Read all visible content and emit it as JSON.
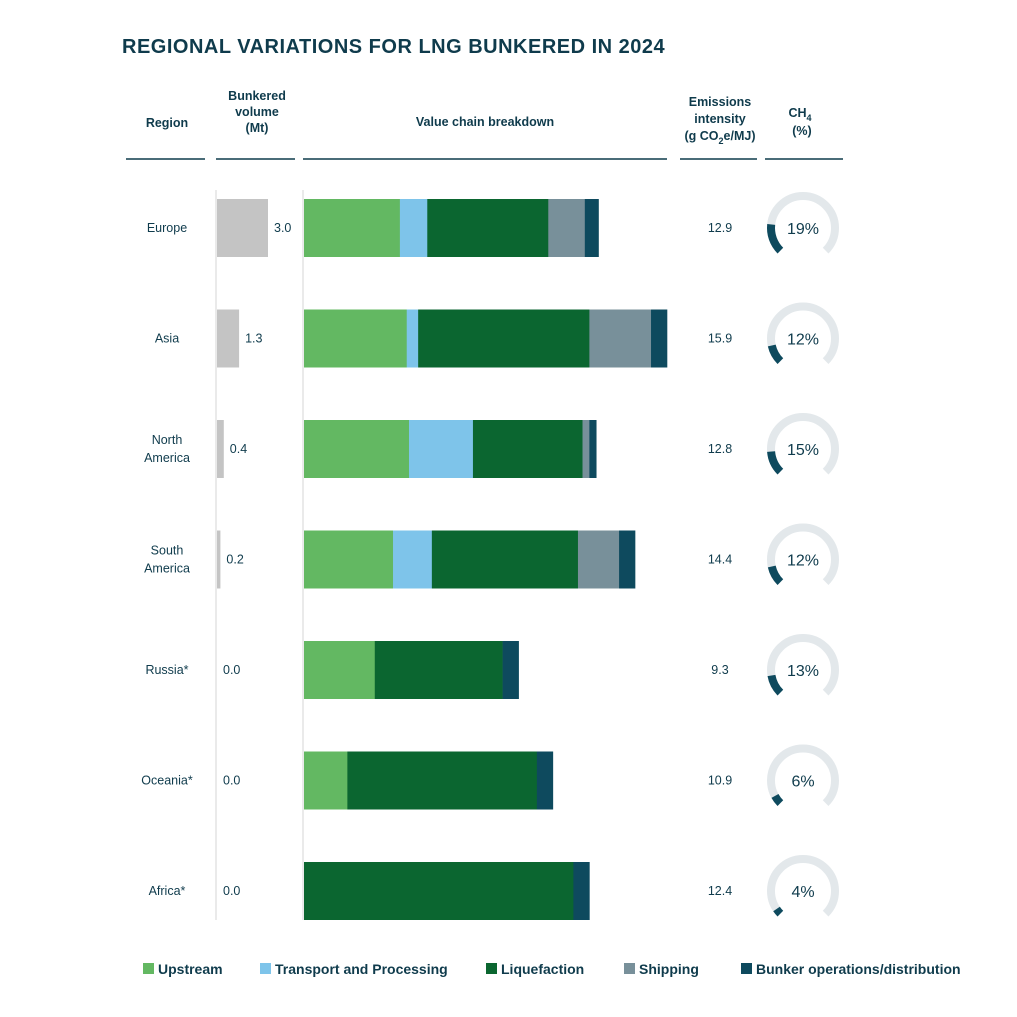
{
  "chart_data": {
    "type": "bar",
    "title": "REGIONAL VARIATIONS FOR LNG BUNKERED IN 2024",
    "columns": {
      "region": "Region",
      "volume": [
        "Bunkered",
        "volume",
        "(Mt)"
      ],
      "breakdown": "Value chain breakdown",
      "emissions": [
        "Emissions",
        "intensity",
        "(g CO",
        "2",
        "e/MJ)"
      ],
      "ch4": [
        "CH",
        "4",
        "(%)"
      ]
    },
    "legend_position": "bottom",
    "series": [
      {
        "name": "Upstream",
        "color": "#63b862"
      },
      {
        "name": "Transport and Processing",
        "color": "#7ec4ea"
      },
      {
        "name": "Liquefaction",
        "color": "#0b6630"
      },
      {
        "name": "Shipping",
        "color": "#78909a"
      },
      {
        "name": "Bunker operations/distribution",
        "color": "#0e4a5e"
      }
    ],
    "volume_max": 3.0,
    "breakdown_max": 15.9,
    "rows": [
      {
        "region": [
          "Europe"
        ],
        "volume": 3.0,
        "volume_label": "3.0",
        "segments": [
          4.2,
          1.2,
          5.3,
          1.6,
          0.6
        ],
        "emissions": "12.9",
        "ch4": 19,
        "ch4_label": "19%"
      },
      {
        "region": [
          "Asia"
        ],
        "volume": 1.3,
        "volume_label": "1.3",
        "segments": [
          4.5,
          0.5,
          7.5,
          2.7,
          0.7
        ],
        "emissions": "15.9",
        "ch4": 12,
        "ch4_label": "12%"
      },
      {
        "region": [
          "North",
          "America"
        ],
        "volume": 0.4,
        "volume_label": "0.4",
        "segments": [
          4.6,
          2.8,
          4.8,
          0.3,
          0.3
        ],
        "emissions": "12.8",
        "ch4": 15,
        "ch4_label": "15%"
      },
      {
        "region": [
          "South",
          "America"
        ],
        "volume": 0.2,
        "volume_label": "0.2",
        "segments": [
          3.9,
          1.7,
          6.4,
          1.8,
          0.7
        ],
        "emissions": "14.4",
        "ch4": 12,
        "ch4_label": "12%"
      },
      {
        "region": [
          "Russia*"
        ],
        "volume": 0.0,
        "volume_label": "0.0",
        "segments": [
          3.1,
          0,
          5.6,
          0,
          0.7
        ],
        "emissions": "9.3",
        "ch4": 13,
        "ch4_label": "13%"
      },
      {
        "region": [
          "Oceania*"
        ],
        "volume": 0.0,
        "volume_label": "0.0",
        "segments": [
          1.9,
          0,
          8.3,
          0,
          0.7
        ],
        "emissions": "10.9",
        "ch4": 6,
        "ch4_label": "6%"
      },
      {
        "region": [
          "Africa*"
        ],
        "volume": 0.0,
        "volume_label": "0.0",
        "segments": [
          0,
          0,
          11.8,
          0,
          0.7
        ],
        "emissions": "12.4",
        "ch4": 4,
        "ch4_label": "4%"
      }
    ]
  },
  "style": {
    "text_color": "#0f3b4c",
    "volume_bar_color": "#c4c4c4",
    "gauge_track_color": "#e3e8eb",
    "gauge_fill_color": "#0e4a5e",
    "rule_color": "#0f3b4c",
    "axis_color": "#d5d5d5"
  }
}
